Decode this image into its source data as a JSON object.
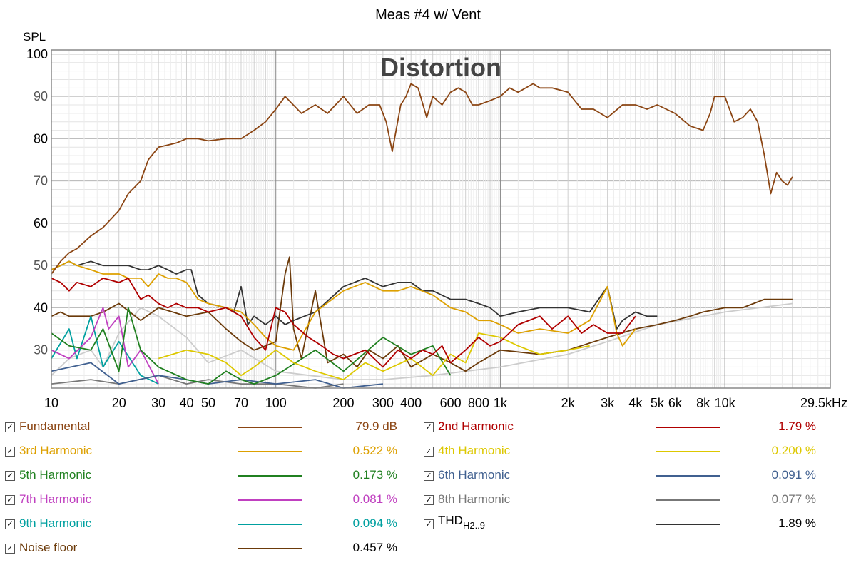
{
  "title": "Meas #4 w/ Vent",
  "chart_data": {
    "type": "line",
    "title": "Meas #4 w/ Vent",
    "subtitle": "Distortion",
    "ylabel": "SPL",
    "xscale": "log",
    "xlim": [
      10,
      29500
    ],
    "ylim": [
      21,
      101
    ],
    "yticks": [
      30,
      40,
      50,
      60,
      70,
      80,
      90,
      100
    ],
    "xtick_labels": [
      {
        "v": 10,
        "t": "10"
      },
      {
        "v": 20,
        "t": "20"
      },
      {
        "v": 30,
        "t": "30"
      },
      {
        "v": 40,
        "t": "40"
      },
      {
        "v": 50,
        "t": "50"
      },
      {
        "v": 70,
        "t": "70"
      },
      {
        "v": 100,
        "t": "100"
      },
      {
        "v": 200,
        "t": "200"
      },
      {
        "v": 300,
        "t": "300"
      },
      {
        "v": 400,
        "t": "400"
      },
      {
        "v": 600,
        "t": "600"
      },
      {
        "v": 800,
        "t": "800"
      },
      {
        "v": 1000,
        "t": "1k"
      },
      {
        "v": 2000,
        "t": "2k"
      },
      {
        "v": 3000,
        "t": "3k"
      },
      {
        "v": 4000,
        "t": "4k"
      },
      {
        "v": 5000,
        "t": "5k"
      },
      {
        "v": 6000,
        "t": "6k"
      },
      {
        "v": 8000,
        "t": "8k"
      },
      {
        "v": 10000,
        "t": "10k"
      },
      {
        "v": 29500,
        "t": "29.5kHz"
      }
    ],
    "grid": true,
    "legend_position": "bottom",
    "series": [
      {
        "name": "Fundamental",
        "color": "#8B4513",
        "x": [
          10,
          11,
          12,
          13,
          15,
          17,
          20,
          22,
          25,
          27,
          30,
          33,
          36,
          40,
          45,
          50,
          60,
          70,
          80,
          90,
          100,
          110,
          130,
          150,
          170,
          200,
          230,
          260,
          290,
          310,
          330,
          360,
          380,
          400,
          430,
          470,
          500,
          550,
          600,
          650,
          700,
          750,
          800,
          900,
          1000,
          1100,
          1200,
          1400,
          1500,
          1700,
          2000,
          2300,
          2600,
          3000,
          3500,
          4000,
          4500,
          5000,
          6000,
          7000,
          8000,
          8600,
          9000,
          10000,
          11000,
          12000,
          13000,
          14000,
          15000,
          16000,
          17000,
          18000,
          19000,
          20000
        ],
        "y": [
          48,
          51,
          53,
          54,
          57,
          59,
          63,
          67,
          70,
          75,
          78,
          78.5,
          79,
          80,
          80,
          79.5,
          80,
          80,
          82,
          84,
          87,
          90,
          86,
          88,
          86,
          90,
          86,
          88,
          88,
          84,
          77,
          88,
          90,
          93,
          92,
          85,
          90,
          88,
          91,
          92,
          91,
          88,
          88,
          89,
          90,
          92,
          91,
          93,
          92,
          92,
          91,
          87,
          87,
          85,
          88,
          88,
          87,
          88,
          86,
          83,
          82,
          86,
          90,
          90,
          84,
          85,
          87,
          84,
          76,
          67,
          72,
          70,
          69,
          71
        ]
      },
      {
        "name": "2nd Harmonic",
        "color": "#B00000",
        "x": [
          10,
          11,
          12,
          13,
          15,
          17,
          20,
          22,
          25,
          27,
          30,
          33,
          36,
          40,
          45,
          50,
          60,
          70,
          80,
          90,
          100,
          110,
          120,
          140,
          160,
          180,
          200,
          250,
          300,
          350,
          400,
          450,
          500,
          550,
          600,
          700,
          800,
          900,
          1000,
          1200,
          1500,
          1700,
          2000,
          2300,
          2600,
          3000,
          3500,
          4000
        ],
        "y": [
          47,
          46,
          44,
          46,
          45,
          47,
          46,
          47,
          42,
          43,
          41,
          40,
          41,
          40,
          40,
          39,
          40,
          38,
          33,
          30,
          40,
          39,
          36,
          33,
          31,
          29,
          28,
          30,
          26,
          30,
          28,
          30,
          29,
          31,
          27,
          30,
          33,
          31,
          32,
          36,
          38,
          35,
          38,
          34,
          36,
          34,
          34,
          38
        ]
      },
      {
        "name": "3rd Harmonic",
        "color": "#DDA000",
        "x": [
          10,
          11,
          12,
          13,
          15,
          17,
          20,
          22,
          25,
          27,
          30,
          33,
          36,
          40,
          45,
          50,
          60,
          70,
          80,
          90,
          100,
          120,
          150,
          200,
          250,
          300,
          350,
          400,
          500,
          600,
          700,
          800,
          900,
          1000,
          1200,
          1500,
          2000,
          2500,
          3000,
          3300,
          3500,
          4000
        ],
        "y": [
          49,
          50,
          51,
          50,
          49,
          48,
          48,
          47,
          47,
          45,
          48,
          47,
          47,
          46,
          42,
          41,
          40,
          39,
          36,
          33,
          31,
          30,
          39,
          44,
          46,
          44,
          44,
          45,
          43,
          40,
          39,
          37,
          37,
          36,
          34,
          35,
          34,
          37,
          45,
          34,
          31,
          35
        ]
      },
      {
        "name": "4th Harmonic",
        "color": "#DDC800",
        "x": [
          30,
          40,
          50,
          60,
          70,
          80,
          100,
          120,
          150,
          200,
          250,
          300,
          400,
          500,
          600,
          700,
          800,
          1000,
          1200,
          1500,
          2000,
          2500
        ],
        "y": [
          28,
          30,
          29,
          27,
          24,
          26,
          30,
          27,
          25,
          23,
          27,
          25,
          28,
          24,
          29,
          27,
          34,
          33,
          31,
          29,
          30,
          31
        ]
      },
      {
        "name": "5th Harmonic",
        "color": "#208020",
        "x": [
          10,
          12,
          15,
          17,
          20,
          22,
          25,
          30,
          40,
          50,
          60,
          70,
          80,
          100,
          150,
          200,
          300,
          400,
          500,
          600
        ],
        "y": [
          34,
          31,
          30,
          35,
          25,
          40,
          30,
          26,
          23,
          22,
          25,
          23,
          22,
          24,
          30,
          25,
          33,
          29,
          31,
          24
        ]
      },
      {
        "name": "6th Harmonic",
        "color": "#406090",
        "x": [
          10,
          15,
          20,
          30,
          40,
          50,
          70,
          100,
          150,
          200,
          300
        ],
        "y": [
          25,
          27,
          22,
          24,
          23,
          22,
          23,
          22,
          23,
          21,
          22
        ]
      },
      {
        "name": "7th Harmonic",
        "color": "#C040C0",
        "x": [
          10,
          12,
          15,
          17,
          18,
          20,
          22,
          25,
          30
        ],
        "y": [
          30,
          28,
          33,
          40,
          35,
          38,
          26,
          30,
          22
        ]
      },
      {
        "name": "8th Harmonic",
        "color": "#777777",
        "x": [
          10,
          15,
          20,
          30,
          40,
          50,
          70,
          100,
          150,
          200
        ],
        "y": [
          22,
          23,
          22,
          24,
          22,
          23,
          22,
          22,
          21,
          22
        ]
      },
      {
        "name": "9th Harmonic",
        "color": "#00A0A0",
        "x": [
          10,
          12,
          13,
          15,
          17,
          20,
          25,
          30
        ],
        "y": [
          28,
          35,
          28,
          38,
          26,
          32,
          24,
          22
        ]
      },
      {
        "name": "THD",
        "color": "#333333",
        "x": [
          10,
          11,
          12,
          13,
          15,
          17,
          20,
          22,
          25,
          27,
          30,
          33,
          36,
          40,
          42,
          45,
          50,
          60,
          65,
          70,
          75,
          80,
          90,
          100,
          110,
          120,
          150,
          200,
          250,
          300,
          350,
          400,
          450,
          500,
          600,
          700,
          800,
          900,
          1000,
          1200,
          1500,
          2000,
          2500,
          3000,
          3300,
          3500,
          4000,
          4500,
          5000
        ],
        "y": [
          49,
          50,
          51,
          50,
          51,
          50,
          50,
          50,
          49,
          49,
          50,
          49,
          48,
          49,
          49,
          43,
          41,
          40,
          39,
          45,
          36,
          38,
          36,
          38,
          36,
          37,
          39,
          45,
          47,
          45,
          46,
          46,
          44,
          44,
          42,
          42,
          41,
          40,
          38,
          39,
          40,
          40,
          39,
          45,
          35,
          37,
          39,
          38,
          38
        ]
      },
      {
        "name": "Noise floor",
        "color": "#6B3A0A",
        "x": [
          10,
          11,
          12,
          13,
          15,
          17,
          20,
          25,
          30,
          40,
          50,
          60,
          70,
          80,
          90,
          100,
          110,
          115,
          120,
          130,
          150,
          170,
          200,
          230,
          260,
          300,
          350,
          400,
          500,
          600,
          700,
          800,
          1000,
          1500,
          2000,
          3000,
          4000,
          5000,
          6000,
          7000,
          8000,
          10000,
          12000,
          15000,
          18000,
          20000
        ],
        "y": [
          38,
          39,
          38,
          38,
          38,
          39,
          41,
          37,
          40,
          38,
          39,
          35,
          32,
          30,
          31,
          32,
          48,
          52,
          35,
          28,
          44,
          27,
          29,
          26,
          30,
          28,
          31,
          26,
          29,
          27,
          25,
          27,
          30,
          29,
          30,
          33,
          35,
          36,
          37,
          38,
          39,
          40,
          40,
          42,
          42,
          42
        ]
      },
      {
        "name": "Noise floor (gray)",
        "color": "#CCCCCC",
        "x": [
          10,
          12,
          15,
          17,
          20,
          25,
          30,
          40,
          50,
          70,
          100,
          200,
          300,
          500,
          700,
          1000,
          2000,
          3000,
          5000,
          8000,
          10000,
          20000
        ],
        "y": [
          24,
          28,
          30,
          26,
          34,
          40,
          38,
          33,
          27,
          30,
          25,
          23,
          23,
          24,
          25,
          26,
          29,
          32,
          36,
          38,
          39,
          41
        ]
      }
    ]
  },
  "legend": {
    "left": [
      {
        "name": "Fundamental",
        "value": "79.9 dB",
        "color": "#8B4513"
      },
      {
        "name": "3rd Harmonic",
        "value": "0.522 %",
        "color": "#DDA000"
      },
      {
        "name": "5th Harmonic",
        "value": "0.173 %",
        "color": "#208020"
      },
      {
        "name": "7th Harmonic",
        "value": "0.081 %",
        "color": "#C040C0"
      },
      {
        "name": "9th Harmonic",
        "value": "0.094 %",
        "color": "#00A0A0"
      },
      {
        "name": "Noise floor",
        "value": "0.457 %",
        "color": "#6B3A0A"
      }
    ],
    "right": [
      {
        "name": "2nd Harmonic",
        "value": "1.79 %",
        "color": "#B00000"
      },
      {
        "name": "4th Harmonic",
        "value": "0.200 %",
        "color": "#DDC800"
      },
      {
        "name": "6th Harmonic",
        "value": "0.091 %",
        "color": "#406090"
      },
      {
        "name": "8th Harmonic",
        "value": "0.077 %",
        "color": "#777777"
      },
      {
        "name": "THD",
        "sub": "H2..9",
        "value": "1.89 %",
        "color": "#333333"
      }
    ],
    "check_mark": "✓"
  }
}
